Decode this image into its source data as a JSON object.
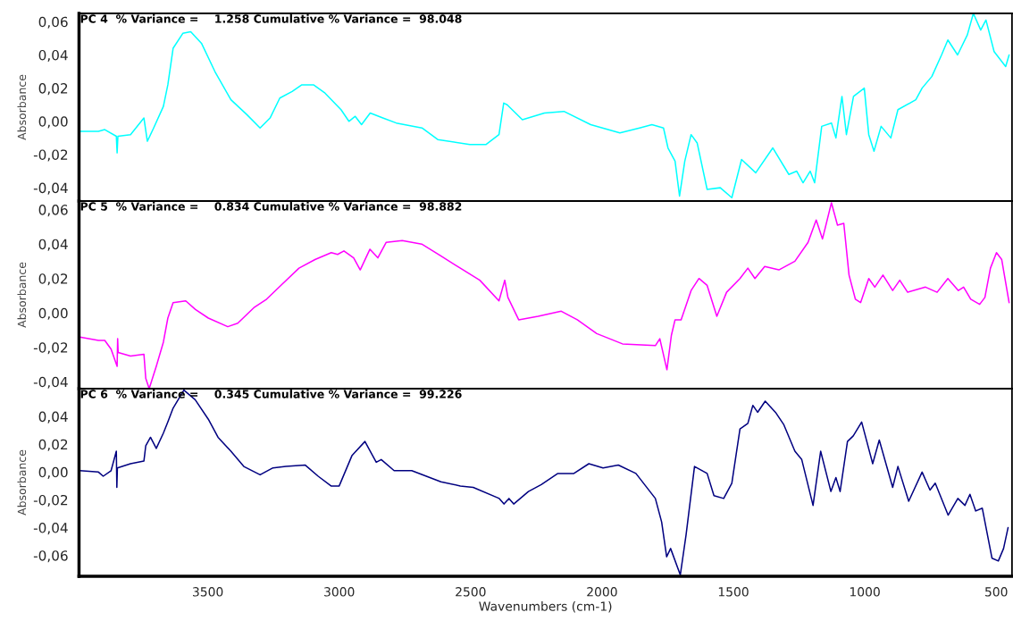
{
  "chart_data": [
    {
      "type": "line",
      "title": "PC 4  % Variance =    1.258 Cumulative % Variance =  98.048",
      "ylabel": "Absorbance",
      "xlim": [
        3990,
        440
      ],
      "ylim": [
        -0.048,
        0.065
      ],
      "tick_labels": "y",
      "grid": false,
      "legend": false,
      "yticks": [
        {
          "value": -0.04,
          "label": "-0,04"
        },
        {
          "value": -0.02,
          "label": "-0,02"
        },
        {
          "value": 0.0,
          "label": "0,00"
        },
        {
          "value": 0.02,
          "label": "0,02"
        },
        {
          "value": 0.04,
          "label": "0,04"
        },
        {
          "value": 0.06,
          "label": "0,06"
        }
      ],
      "x": [
        3987,
        3916,
        3892,
        3848,
        3845,
        3842,
        3794,
        3743,
        3730,
        3706,
        3669,
        3652,
        3632,
        3595,
        3565,
        3524,
        3473,
        3412,
        3351,
        3301,
        3263,
        3226,
        3179,
        3142,
        3098,
        3054,
        2993,
        2963,
        2939,
        2915,
        2882,
        2834,
        2783,
        2685,
        2625,
        2503,
        2442,
        2392,
        2374,
        2361,
        2303,
        2219,
        2145,
        2043,
        1932,
        1857,
        1810,
        1766,
        1749,
        1722,
        1705,
        1685,
        1661,
        1638,
        1600,
        1550,
        1506,
        1469,
        1415,
        1350,
        1289,
        1259,
        1235,
        1208,
        1191,
        1164,
        1127,
        1110,
        1087,
        1070,
        1043,
        1002,
        985,
        965,
        938,
        901,
        874,
        806,
        782,
        745,
        708,
        684,
        647,
        610,
        587,
        559,
        539,
        508,
        464,
        451
      ],
      "series": [
        {
          "color": "#00ffff",
          "values": [
            -0.006,
            -0.006,
            -0.005,
            -0.009,
            -0.019,
            -0.009,
            -0.008,
            0.002,
            -0.012,
            -0.004,
            0.009,
            0.022,
            0.044,
            0.053,
            0.054,
            0.047,
            0.03,
            0.013,
            0.004,
            -0.004,
            0.002,
            0.014,
            0.018,
            0.022,
            0.022,
            0.017,
            0.007,
            0.0,
            0.003,
            -0.002,
            0.005,
            0.002,
            -0.001,
            -0.004,
            -0.011,
            -0.014,
            -0.014,
            -0.008,
            0.011,
            0.01,
            0.001,
            0.005,
            0.006,
            -0.002,
            -0.007,
            -0.004,
            -0.002,
            -0.004,
            -0.016,
            -0.024,
            -0.045,
            -0.024,
            -0.008,
            -0.013,
            -0.041,
            -0.04,
            -0.046,
            -0.023,
            -0.031,
            -0.016,
            -0.032,
            -0.03,
            -0.037,
            -0.03,
            -0.037,
            -0.003,
            -0.001,
            -0.01,
            0.015,
            -0.008,
            0.015,
            0.02,
            -0.008,
            -0.018,
            -0.003,
            -0.01,
            0.007,
            0.013,
            0.02,
            0.027,
            0.04,
            0.049,
            0.04,
            0.052,
            0.065,
            0.055,
            0.061,
            0.042,
            0.033,
            0.04
          ]
        }
      ]
    },
    {
      "type": "line",
      "title": "PC 5  % Variance =    0.834 Cumulative % Variance =  98.882",
      "ylabel": "Absorbance",
      "xlim": [
        3990,
        440
      ],
      "ylim": [
        -0.044,
        0.065
      ],
      "tick_labels": "y",
      "grid": false,
      "legend": false,
      "yticks": [
        {
          "value": -0.04,
          "label": "-0,04"
        },
        {
          "value": -0.02,
          "label": "-0,02"
        },
        {
          "value": 0.0,
          "label": "0,00"
        },
        {
          "value": 0.02,
          "label": "0,02"
        },
        {
          "value": 0.04,
          "label": "0,04"
        },
        {
          "value": 0.06,
          "label": "0,06"
        }
      ],
      "x": [
        3987,
        3916,
        3892,
        3868,
        3845,
        3843,
        3841,
        3794,
        3743,
        3736,
        3723,
        3696,
        3669,
        3652,
        3632,
        3584,
        3547,
        3498,
        3424,
        3386,
        3325,
        3276,
        3215,
        3153,
        3092,
        3030,
        3006,
        2982,
        2945,
        2920,
        2883,
        2853,
        2821,
        2760,
        2686,
        2612,
        2539,
        2465,
        2392,
        2370,
        2358,
        2317,
        2243,
        2155,
        2094,
        2020,
        1922,
        1797,
        1780,
        1753,
        1736,
        1722,
        1699,
        1661,
        1631,
        1600,
        1563,
        1526,
        1475,
        1445,
        1418,
        1381,
        1327,
        1266,
        1216,
        1185,
        1161,
        1127,
        1104,
        1080,
        1060,
        1036,
        1016,
        985,
        962,
        931,
        894,
        867,
        837,
        769,
        725,
        684,
        644,
        624,
        597,
        563,
        543,
        522,
        499,
        479,
        451
      ],
      "series": [
        {
          "color": "#ff00ff",
          "values": [
            -0.014,
            -0.016,
            -0.016,
            -0.021,
            -0.031,
            -0.015,
            -0.023,
            -0.025,
            -0.024,
            -0.038,
            -0.044,
            -0.031,
            -0.017,
            -0.003,
            0.006,
            0.007,
            0.002,
            -0.003,
            -0.008,
            -0.006,
            0.003,
            0.008,
            0.017,
            0.026,
            0.031,
            0.035,
            0.034,
            0.036,
            0.032,
            0.025,
            0.037,
            0.032,
            0.041,
            0.042,
            0.04,
            0.033,
            0.026,
            0.019,
            0.007,
            0.019,
            0.009,
            -0.004,
            -0.002,
            0.001,
            -0.004,
            -0.012,
            -0.018,
            -0.019,
            -0.015,
            -0.033,
            -0.013,
            -0.004,
            -0.004,
            0.013,
            0.02,
            0.016,
            -0.002,
            0.012,
            0.02,
            0.026,
            0.02,
            0.027,
            0.025,
            0.03,
            0.041,
            0.054,
            0.043,
            0.064,
            0.051,
            0.052,
            0.022,
            0.008,
            0.006,
            0.02,
            0.015,
            0.022,
            0.013,
            0.019,
            0.012,
            0.015,
            0.012,
            0.02,
            0.013,
            0.015,
            0.008,
            0.005,
            0.009,
            0.026,
            0.035,
            0.031,
            0.006
          ]
        }
      ]
    },
    {
      "type": "line",
      "title": "PC 6  % Variance =    0.345 Cumulative % Variance =  99.226",
      "ylabel": "Absorbance",
      "xlabel": "Wavenumbers (cm-1)",
      "xlim": [
        3990,
        440
      ],
      "ylim": [
        -0.075,
        0.06
      ],
      "grid": false,
      "legend": false,
      "xticks": [
        3500,
        3000,
        2500,
        2000,
        1500,
        1000,
        500
      ],
      "yticks": [
        {
          "value": -0.06,
          "label": "-0,06"
        },
        {
          "value": -0.04,
          "label": "-0,04"
        },
        {
          "value": -0.02,
          "label": "-0,02"
        },
        {
          "value": 0.0,
          "label": "0,00"
        },
        {
          "value": 0.02,
          "label": "0,02"
        },
        {
          "value": 0.04,
          "label": "0,04"
        }
      ],
      "x": [
        3987,
        3916,
        3898,
        3868,
        3848,
        3846,
        3844,
        3794,
        3743,
        3736,
        3718,
        3696,
        3669,
        3652,
        3632,
        3591,
        3548,
        3498,
        3461,
        3412,
        3363,
        3301,
        3252,
        3203,
        3129,
        3080,
        3031,
        3000,
        2951,
        2902,
        2859,
        2840,
        2791,
        2724,
        2613,
        2539,
        2490,
        2391,
        2373,
        2354,
        2336,
        2280,
        2231,
        2168,
        2107,
        2050,
        1996,
        1938,
        1871,
        1797,
        1773,
        1754,
        1739,
        1702,
        1680,
        1648,
        1600,
        1574,
        1537,
        1506,
        1475,
        1445,
        1426,
        1408,
        1379,
        1340,
        1308,
        1266,
        1240,
        1197,
        1168,
        1129,
        1110,
        1094,
        1066,
        1044,
        1012,
        970,
        945,
        894,
        874,
        833,
        782,
        752,
        732,
        683,
        646,
        619,
        600,
        578,
        553,
        516,
        492,
        472,
        455
      ],
      "series": [
        {
          "color": "#000080",
          "values": [
            0.001,
            0.0,
            -0.003,
            0.001,
            0.015,
            -0.011,
            0.003,
            0.006,
            0.008,
            0.019,
            0.025,
            0.017,
            0.028,
            0.036,
            0.046,
            0.059,
            0.052,
            0.038,
            0.025,
            0.015,
            0.004,
            -0.002,
            0.003,
            0.004,
            0.005,
            -0.003,
            -0.01,
            -0.01,
            0.012,
            0.022,
            0.007,
            0.009,
            0.001,
            0.001,
            -0.007,
            -0.01,
            -0.011,
            -0.019,
            -0.023,
            -0.019,
            -0.023,
            -0.014,
            -0.009,
            -0.001,
            -0.001,
            0.006,
            0.003,
            0.005,
            -0.001,
            -0.019,
            -0.036,
            -0.061,
            -0.055,
            -0.074,
            -0.045,
            0.004,
            -0.001,
            -0.017,
            -0.019,
            -0.008,
            0.031,
            0.035,
            0.048,
            0.043,
            0.051,
            0.043,
            0.034,
            0.015,
            0.009,
            -0.024,
            0.015,
            -0.014,
            -0.004,
            -0.014,
            0.022,
            0.026,
            0.036,
            0.006,
            0.023,
            -0.011,
            0.004,
            -0.021,
            0.0,
            -0.013,
            -0.008,
            -0.031,
            -0.019,
            -0.024,
            -0.016,
            -0.028,
            -0.026,
            -0.062,
            -0.064,
            -0.055,
            -0.04
          ]
        }
      ]
    }
  ]
}
